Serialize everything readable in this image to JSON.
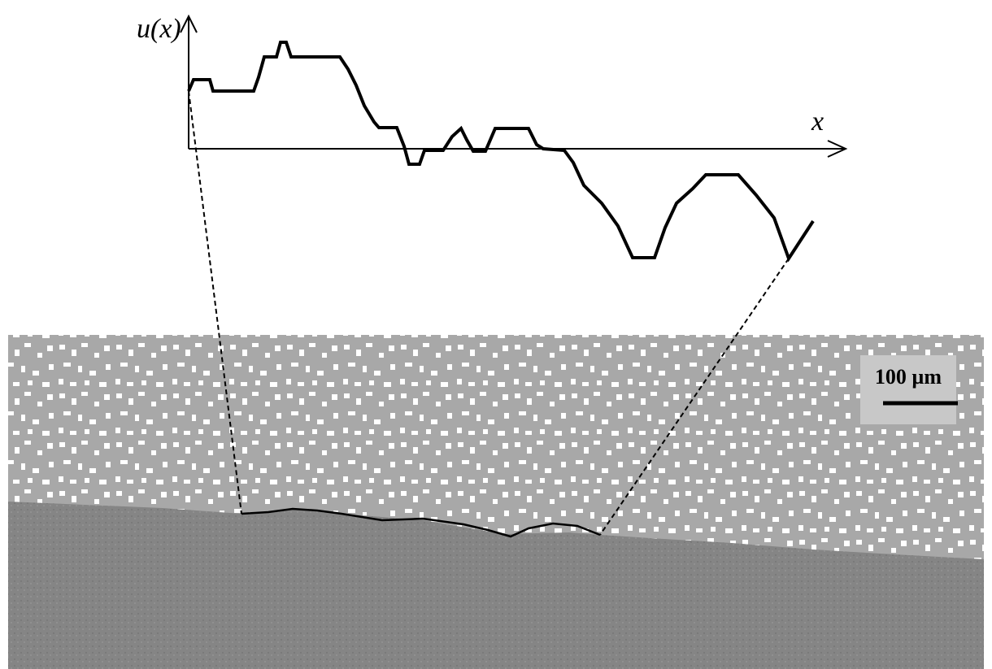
{
  "labels": {
    "y_axis": "u(x)",
    "x_axis": "x",
    "scale_bar": "100 µm"
  }
}
